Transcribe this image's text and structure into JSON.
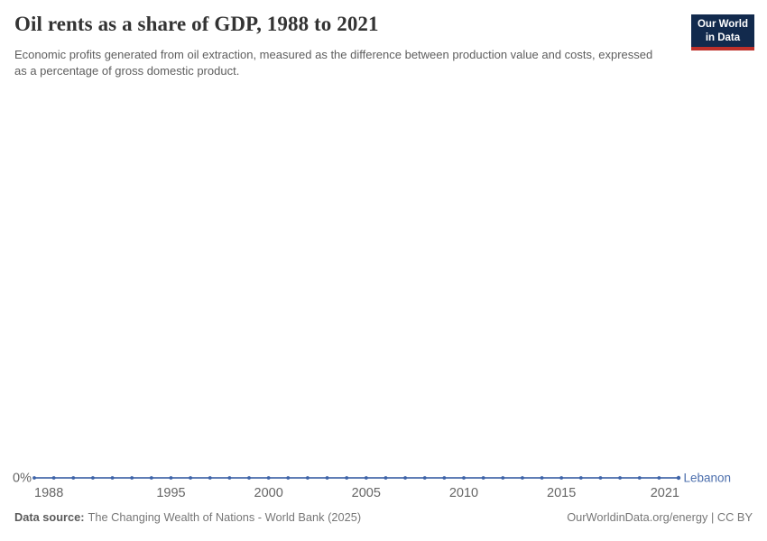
{
  "colors": {
    "line": "#4a6cab",
    "point": "#3d63a8",
    "entity_label": "#4c6fad",
    "axis_text": "#666666",
    "logo_bg": "#122a4d",
    "logo_stripe": "#be302a"
  },
  "header": {
    "title": "Oil rents as a share of GDP, 1988 to 2021",
    "subtitle": "Economic profits generated from oil extraction, measured as the difference between production value and costs, expressed as a percentage of gross domestic product.",
    "logo": {
      "line1": "Our World",
      "line2": "in Data"
    }
  },
  "chart_data": {
    "type": "line",
    "title": "Oil rents as a share of GDP, 1988 to 2021",
    "unit": "%",
    "grid": false,
    "legend": "inline-end-label",
    "xlim": [
      1988,
      2021
    ],
    "ylim": [
      0,
      1
    ],
    "x_ticks": [
      1988,
      1995,
      2000,
      2005,
      2010,
      2015,
      2021
    ],
    "y_tick_labels": [
      "0%"
    ],
    "x": [
      1988,
      1989,
      1990,
      1991,
      1992,
      1993,
      1994,
      1995,
      1996,
      1997,
      1998,
      1999,
      2000,
      2001,
      2002,
      2003,
      2004,
      2005,
      2006,
      2007,
      2008,
      2009,
      2010,
      2011,
      2012,
      2013,
      2014,
      2015,
      2016,
      2017,
      2018,
      2019,
      2020,
      2021
    ],
    "series": [
      {
        "name": "Lebanon",
        "values": [
          0,
          0,
          0,
          0,
          0,
          0,
          0,
          0,
          0,
          0,
          0,
          0,
          0,
          0,
          0,
          0,
          0,
          0,
          0,
          0,
          0,
          0,
          0,
          0,
          0,
          0,
          0,
          0,
          0,
          0,
          0,
          0,
          0,
          0
        ]
      }
    ]
  },
  "footer": {
    "source_label": "Data source:",
    "source_text": "The Changing Wealth of Nations - World Bank (2025)",
    "credit": "OurWorldinData.org/energy | CC BY"
  }
}
